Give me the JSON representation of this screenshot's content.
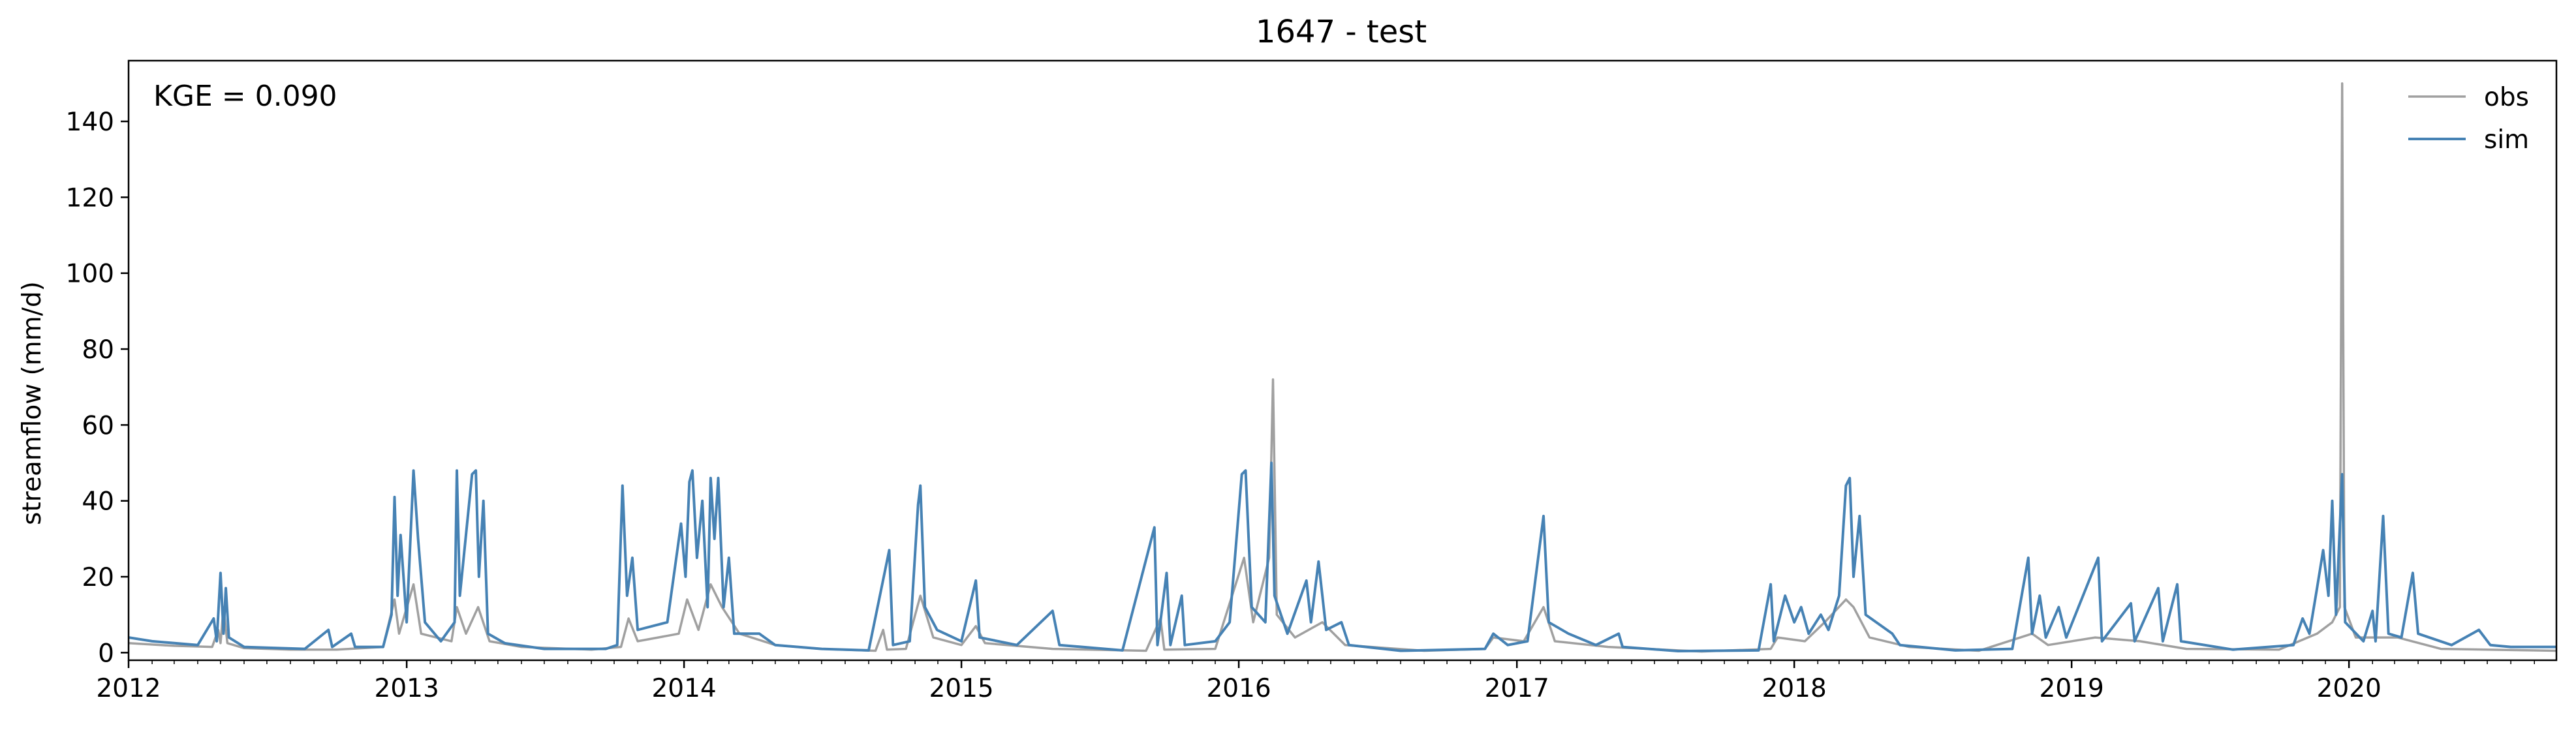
{
  "chart_data": {
    "type": "line",
    "title": "1647 - test",
    "xlabel": "",
    "ylabel": "streamflow (mm/d)",
    "annotation": "KGE = 0.090",
    "xlim": [
      "2012-01-01",
      "2020-09-30"
    ],
    "ylim": [
      -2,
      156
    ],
    "xticks": [
      "2012",
      "2013",
      "2014",
      "2015",
      "2016",
      "2017",
      "2018",
      "2019",
      "2020"
    ],
    "yticks": [
      0,
      20,
      40,
      60,
      80,
      100,
      120,
      140
    ],
    "grid": false,
    "legend_position": "top-right",
    "series": [
      {
        "name": "obs",
        "color": "#a0a0a0",
        "points": [
          [
            "2012-01-01",
            2.5
          ],
          [
            "2012-03-01",
            1.8
          ],
          [
            "2012-04-20",
            1.5
          ],
          [
            "2012-04-28",
            6
          ],
          [
            "2012-05-01",
            2.5
          ],
          [
            "2012-05-05",
            12
          ],
          [
            "2012-05-10",
            2.5
          ],
          [
            "2012-06-01",
            1.2
          ],
          [
            "2012-08-01",
            0.8
          ],
          [
            "2012-10-01",
            0.8
          ],
          [
            "2012-12-01",
            1.5
          ],
          [
            "2012-12-16",
            14
          ],
          [
            "2012-12-22",
            5
          ],
          [
            "2013-01-10",
            18
          ],
          [
            "2013-01-20",
            5
          ],
          [
            "2013-03-01",
            3
          ],
          [
            "2013-03-08",
            12
          ],
          [
            "2013-03-20",
            5
          ],
          [
            "2013-04-05",
            12
          ],
          [
            "2013-04-20",
            3
          ],
          [
            "2013-06-01",
            1.5
          ],
          [
            "2013-09-01",
            0.8
          ],
          [
            "2013-10-10",
            1.5
          ],
          [
            "2013-10-20",
            9
          ],
          [
            "2013-11-01",
            3
          ],
          [
            "2013-12-25",
            5
          ],
          [
            "2014-01-05",
            14
          ],
          [
            "2014-01-20",
            6
          ],
          [
            "2014-02-05",
            18
          ],
          [
            "2014-02-20",
            12
          ],
          [
            "2014-03-15",
            5
          ],
          [
            "2014-05-01",
            2
          ],
          [
            "2014-07-01",
            1
          ],
          [
            "2014-09-10",
            0.5
          ],
          [
            "2014-09-20",
            6
          ],
          [
            "2014-09-25",
            0.8
          ],
          [
            "2014-10-20",
            1
          ],
          [
            "2014-11-08",
            15
          ],
          [
            "2014-11-25",
            4
          ],
          [
            "2015-01-01",
            2
          ],
          [
            "2015-01-20",
            7
          ],
          [
            "2015-02-01",
            2.5
          ],
          [
            "2015-05-01",
            1
          ],
          [
            "2015-09-01",
            0.5
          ],
          [
            "2015-09-20",
            9
          ],
          [
            "2015-09-25",
            0.8
          ],
          [
            "2015-12-01",
            1
          ],
          [
            "2016-01-08",
            25
          ],
          [
            "2016-01-20",
            8
          ],
          [
            "2016-02-10",
            25
          ],
          [
            "2016-02-15",
            72
          ],
          [
            "2016-02-20",
            10
          ],
          [
            "2016-03-15",
            4
          ],
          [
            "2016-04-20",
            8
          ],
          [
            "2016-05-20",
            2
          ],
          [
            "2016-09-01",
            0.5
          ],
          [
            "2016-11-20",
            1
          ],
          [
            "2016-12-01",
            4
          ],
          [
            "2017-01-10",
            3
          ],
          [
            "2017-02-05",
            12
          ],
          [
            "2017-02-20",
            3
          ],
          [
            "2017-05-01",
            1.5
          ],
          [
            "2017-09-01",
            0.3
          ],
          [
            "2017-12-01",
            1
          ],
          [
            "2017-12-10",
            4
          ],
          [
            "2018-01-15",
            3
          ],
          [
            "2018-02-10",
            8
          ],
          [
            "2018-03-10",
            14
          ],
          [
            "2018-03-20",
            12
          ],
          [
            "2018-04-10",
            4
          ],
          [
            "2018-06-01",
            1.5
          ],
          [
            "2018-09-01",
            0.5
          ],
          [
            "2018-11-10",
            5
          ],
          [
            "2018-12-01",
            2
          ],
          [
            "2019-02-01",
            4
          ],
          [
            "2019-04-01",
            3
          ],
          [
            "2019-06-01",
            1
          ],
          [
            "2019-10-01",
            0.8
          ],
          [
            "2019-11-20",
            5
          ],
          [
            "2019-12-10",
            8
          ],
          [
            "2019-12-20",
            12
          ],
          [
            "2019-12-23",
            150
          ],
          [
            "2019-12-26",
            12
          ],
          [
            "2020-01-10",
            4
          ],
          [
            "2020-03-05",
            4
          ],
          [
            "2020-05-01",
            1
          ],
          [
            "2020-09-30",
            0.5
          ]
        ]
      },
      {
        "name": "sim",
        "color": "#4682b4",
        "points": [
          [
            "2012-01-01",
            4
          ],
          [
            "2012-02-01",
            3
          ],
          [
            "2012-04-01",
            2
          ],
          [
            "2012-04-22",
            9
          ],
          [
            "2012-04-26",
            3
          ],
          [
            "2012-05-01",
            21
          ],
          [
            "2012-05-05",
            5
          ],
          [
            "2012-05-08",
            17
          ],
          [
            "2012-05-12",
            4
          ],
          [
            "2012-06-01",
            1.5
          ],
          [
            "2012-08-20",
            1
          ],
          [
            "2012-09-20",
            6
          ],
          [
            "2012-09-25",
            1.5
          ],
          [
            "2012-10-20",
            5
          ],
          [
            "2012-10-25",
            1.5
          ],
          [
            "2012-12-01",
            1.5
          ],
          [
            "2012-12-12",
            10
          ],
          [
            "2012-12-16",
            41
          ],
          [
            "2012-12-20",
            15
          ],
          [
            "2012-12-24",
            31
          ],
          [
            "2013-01-01",
            8
          ],
          [
            "2013-01-10",
            48
          ],
          [
            "2013-01-16",
            30
          ],
          [
            "2013-01-25",
            8
          ],
          [
            "2013-02-15",
            3
          ],
          [
            "2013-03-05",
            8
          ],
          [
            "2013-03-08",
            48
          ],
          [
            "2013-03-12",
            15
          ],
          [
            "2013-03-28",
            47
          ],
          [
            "2013-04-02",
            48
          ],
          [
            "2013-04-06",
            20
          ],
          [
            "2013-04-12",
            40
          ],
          [
            "2013-04-18",
            5
          ],
          [
            "2013-05-10",
            2.5
          ],
          [
            "2013-07-01",
            1
          ],
          [
            "2013-09-20",
            1
          ],
          [
            "2013-10-05",
            2
          ],
          [
            "2013-10-12",
            44
          ],
          [
            "2013-10-18",
            15
          ],
          [
            "2013-10-25",
            25
          ],
          [
            "2013-11-01",
            6
          ],
          [
            "2013-12-10",
            8
          ],
          [
            "2013-12-28",
            34
          ],
          [
            "2014-01-03",
            20
          ],
          [
            "2014-01-08",
            45
          ],
          [
            "2014-01-12",
            48
          ],
          [
            "2014-01-18",
            25
          ],
          [
            "2014-01-25",
            40
          ],
          [
            "2014-02-01",
            12
          ],
          [
            "2014-02-05",
            46
          ],
          [
            "2014-02-10",
            30
          ],
          [
            "2014-02-15",
            46
          ],
          [
            "2014-02-22",
            12
          ],
          [
            "2014-03-01",
            25
          ],
          [
            "2014-03-08",
            5
          ],
          [
            "2014-04-10",
            5
          ],
          [
            "2014-05-01",
            2
          ],
          [
            "2014-07-01",
            1
          ],
          [
            "2014-09-01",
            0.6
          ],
          [
            "2014-09-28",
            27
          ],
          [
            "2014-10-03",
            2
          ],
          [
            "2014-10-25",
            3
          ],
          [
            "2014-11-05",
            39
          ],
          [
            "2014-11-08",
            44
          ],
          [
            "2014-11-14",
            12
          ],
          [
            "2014-11-30",
            6
          ],
          [
            "2015-01-01",
            3
          ],
          [
            "2015-01-20",
            19
          ],
          [
            "2015-01-25",
            4
          ],
          [
            "2015-03-15",
            2
          ],
          [
            "2015-05-01",
            11
          ],
          [
            "2015-05-10",
            2
          ],
          [
            "2015-08-01",
            0.6
          ],
          [
            "2015-09-12",
            33
          ],
          [
            "2015-09-16",
            2
          ],
          [
            "2015-09-28",
            21
          ],
          [
            "2015-10-03",
            2
          ],
          [
            "2015-10-18",
            15
          ],
          [
            "2015-10-22",
            2
          ],
          [
            "2015-12-01",
            3
          ],
          [
            "2015-12-20",
            8
          ],
          [
            "2016-01-05",
            47
          ],
          [
            "2016-01-10",
            48
          ],
          [
            "2016-01-18",
            12
          ],
          [
            "2016-02-05",
            8
          ],
          [
            "2016-02-13",
            50
          ],
          [
            "2016-02-17",
            15
          ],
          [
            "2016-03-05",
            5
          ],
          [
            "2016-03-30",
            19
          ],
          [
            "2016-04-05",
            8
          ],
          [
            "2016-04-15",
            24
          ],
          [
            "2016-04-25",
            6
          ],
          [
            "2016-05-15",
            8
          ],
          [
            "2016-05-25",
            2
          ],
          [
            "2016-08-01",
            0.5
          ],
          [
            "2016-11-20",
            1
          ],
          [
            "2016-12-01",
            5
          ],
          [
            "2016-12-20",
            2
          ],
          [
            "2017-01-15",
            3
          ],
          [
            "2017-02-05",
            36
          ],
          [
            "2017-02-12",
            8
          ],
          [
            "2017-03-10",
            5
          ],
          [
            "2017-04-15",
            2
          ],
          [
            "2017-05-15",
            5
          ],
          [
            "2017-05-20",
            1.5
          ],
          [
            "2017-08-01",
            0.4
          ],
          [
            "2017-11-15",
            0.6
          ],
          [
            "2017-12-01",
            18
          ],
          [
            "2017-12-05",
            3
          ],
          [
            "2017-12-20",
            15
          ],
          [
            "2018-01-01",
            8
          ],
          [
            "2018-01-10",
            12
          ],
          [
            "2018-01-20",
            5
          ],
          [
            "2018-02-05",
            10
          ],
          [
            "2018-02-15",
            6
          ],
          [
            "2018-03-01",
            15
          ],
          [
            "2018-03-10",
            44
          ],
          [
            "2018-03-15",
            46
          ],
          [
            "2018-03-20",
            20
          ],
          [
            "2018-03-28",
            36
          ],
          [
            "2018-04-05",
            10
          ],
          [
            "2018-05-10",
            5
          ],
          [
            "2018-05-20",
            2
          ],
          [
            "2018-08-01",
            0.6
          ],
          [
            "2018-10-15",
            1
          ],
          [
            "2018-11-05",
            25
          ],
          [
            "2018-11-10",
            5
          ],
          [
            "2018-11-20",
            15
          ],
          [
            "2018-11-28",
            4
          ],
          [
            "2018-12-15",
            12
          ],
          [
            "2018-12-25",
            4
          ],
          [
            "2019-02-05",
            25
          ],
          [
            "2019-02-10",
            3
          ],
          [
            "2019-03-20",
            13
          ],
          [
            "2019-03-25",
            3
          ],
          [
            "2019-04-25",
            17
          ],
          [
            "2019-05-01",
            3
          ],
          [
            "2019-05-20",
            18
          ],
          [
            "2019-05-25",
            3
          ],
          [
            "2019-08-01",
            0.8
          ],
          [
            "2019-10-20",
            2
          ],
          [
            "2019-11-01",
            9
          ],
          [
            "2019-11-10",
            5
          ],
          [
            "2019-11-20",
            17
          ],
          [
            "2019-11-28",
            27
          ],
          [
            "2019-12-05",
            15
          ],
          [
            "2019-12-10",
            40
          ],
          [
            "2019-12-15",
            10
          ],
          [
            "2019-12-23",
            47
          ],
          [
            "2019-12-27",
            8
          ],
          [
            "2020-01-20",
            3
          ],
          [
            "2020-02-01",
            11
          ],
          [
            "2020-02-05",
            3
          ],
          [
            "2020-02-15",
            36
          ],
          [
            "2020-02-22",
            5
          ],
          [
            "2020-03-10",
            4
          ],
          [
            "2020-03-25",
            21
          ],
          [
            "2020-04-01",
            5
          ],
          [
            "2020-05-15",
            2
          ],
          [
            "2020-06-20",
            6
          ],
          [
            "2020-07-05",
            2
          ],
          [
            "2020-08-01",
            1.5
          ],
          [
            "2020-09-30",
            1.5
          ]
        ]
      }
    ]
  }
}
